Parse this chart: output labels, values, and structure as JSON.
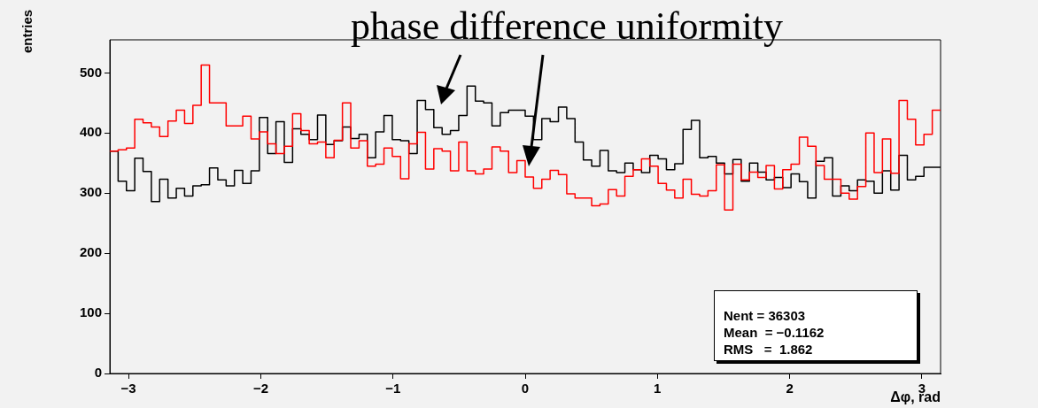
{
  "chart_data": {
    "type": "histogram",
    "title": "phase difference uniformity",
    "xlabel": "Δφ, rad",
    "ylabel": "entries",
    "bins": [
      -3.1416,
      -3.0788,
      -3.0159,
      -2.9531,
      -2.8903,
      -2.8274,
      -2.7646,
      -2.7018,
      -2.6389,
      -2.5761,
      -2.5133,
      -2.4504,
      -2.3876,
      -2.3248,
      -2.2619,
      -2.1991,
      -2.1363,
      -2.0735,
      -2.0106,
      -1.9478,
      -1.885,
      -1.8221,
      -1.7593,
      -1.6965,
      -1.6336,
      -1.5708,
      -1.508,
      -1.4451,
      -1.3823,
      -1.3195,
      -1.2566,
      -1.1938,
      -1.131,
      -1.0681,
      -1.0053,
      -0.9425,
      -0.8796,
      -0.8168,
      -0.754,
      -0.6912,
      -0.6283,
      -0.5655,
      -0.5027,
      -0.4398,
      -0.377,
      -0.3142,
      -0.2513,
      -0.1885,
      -0.1257,
      -0.0628,
      0,
      0.0628,
      0.1257,
      0.1885,
      0.2513,
      0.3142,
      0.377,
      0.4398,
      0.5027,
      0.5655,
      0.6283,
      0.6912,
      0.754,
      0.8168,
      0.8796,
      0.9425,
      1.0053,
      1.0681,
      1.131,
      1.1938,
      1.2566,
      1.3195,
      1.3823,
      1.4451,
      1.508,
      1.5708,
      1.6336,
      1.6965,
      1.7593,
      1.8221,
      1.885,
      1.9478,
      2.0106,
      2.0735,
      2.1363,
      2.1991,
      2.2619,
      2.3248,
      2.3876,
      2.4504,
      2.5133,
      2.5761,
      2.6389,
      2.7018,
      2.7646,
      2.8274,
      2.8903,
      2.9531,
      3.0159,
      3.0788,
      3.1416
    ],
    "series": [
      {
        "color": "#ff0000",
        "values": [
          370,
          372,
          375,
          423,
          417,
          410,
          394,
          420,
          438,
          416,
          446,
          513,
          450,
          450,
          412,
          412,
          428,
          390,
          402,
          382,
          366,
          378,
          432,
          404,
          382,
          385,
          359,
          388,
          450,
          375,
          387,
          345,
          348,
          375,
          361,
          324,
          382,
          401,
          340,
          374,
          370,
          337,
          385,
          337,
          332,
          340,
          377,
          370,
          334,
          354,
          327,
          308,
          323,
          338,
          331,
          299,
          292,
          292,
          279,
          282,
          306,
          295,
          328,
          339,
          357,
          345,
          316,
          305,
          292,
          323,
          298,
          295,
          304,
          347,
          272,
          348,
          322,
          335,
          326,
          346,
          307,
          339,
          348,
          393,
          378,
          346,
          323,
          323,
          300,
          290,
          311,
          400,
          334,
          390,
          333,
          454,
          423,
          380,
          398,
          438
        ]
      },
      {
        "color": "#000000",
        "values": [
          370,
          320,
          304,
          358,
          336,
          286,
          323,
          292,
          308,
          295,
          312,
          314,
          342,
          322,
          312,
          338,
          316,
          337,
          426,
          366,
          419,
          351,
          407,
          398,
          389,
          430,
          381,
          387,
          410,
          391,
          398,
          359,
          402,
          429,
          389,
          387,
          366,
          454,
          439,
          409,
          398,
          404,
          429,
          478,
          453,
          450,
          412,
          434,
          438,
          438,
          428,
          389,
          424,
          419,
          443,
          424,
          385,
          355,
          345,
          371,
          337,
          334,
          350,
          339,
          334,
          363,
          357,
          339,
          349,
          406,
          421,
          359,
          361,
          350,
          332,
          356,
          320,
          350,
          335,
          322,
          326,
          309,
          332,
          319,
          292,
          353,
          359,
          295,
          312,
          304,
          322,
          320,
          300,
          337,
          305,
          363,
          322,
          328,
          343,
          343
        ]
      }
    ],
    "xlim": [
      -3.1416,
      3.1416
    ],
    "xticks": [
      -3,
      -2,
      -1,
      0,
      1,
      2,
      3
    ],
    "ylim": [
      0,
      555
    ],
    "yticks": [
      0,
      100,
      200,
      300,
      400,
      500
    ],
    "legend": false,
    "annotations": [
      "Nent = 36303",
      "Mean  = −0.1162",
      "RMS   =  1.862"
    ]
  }
}
